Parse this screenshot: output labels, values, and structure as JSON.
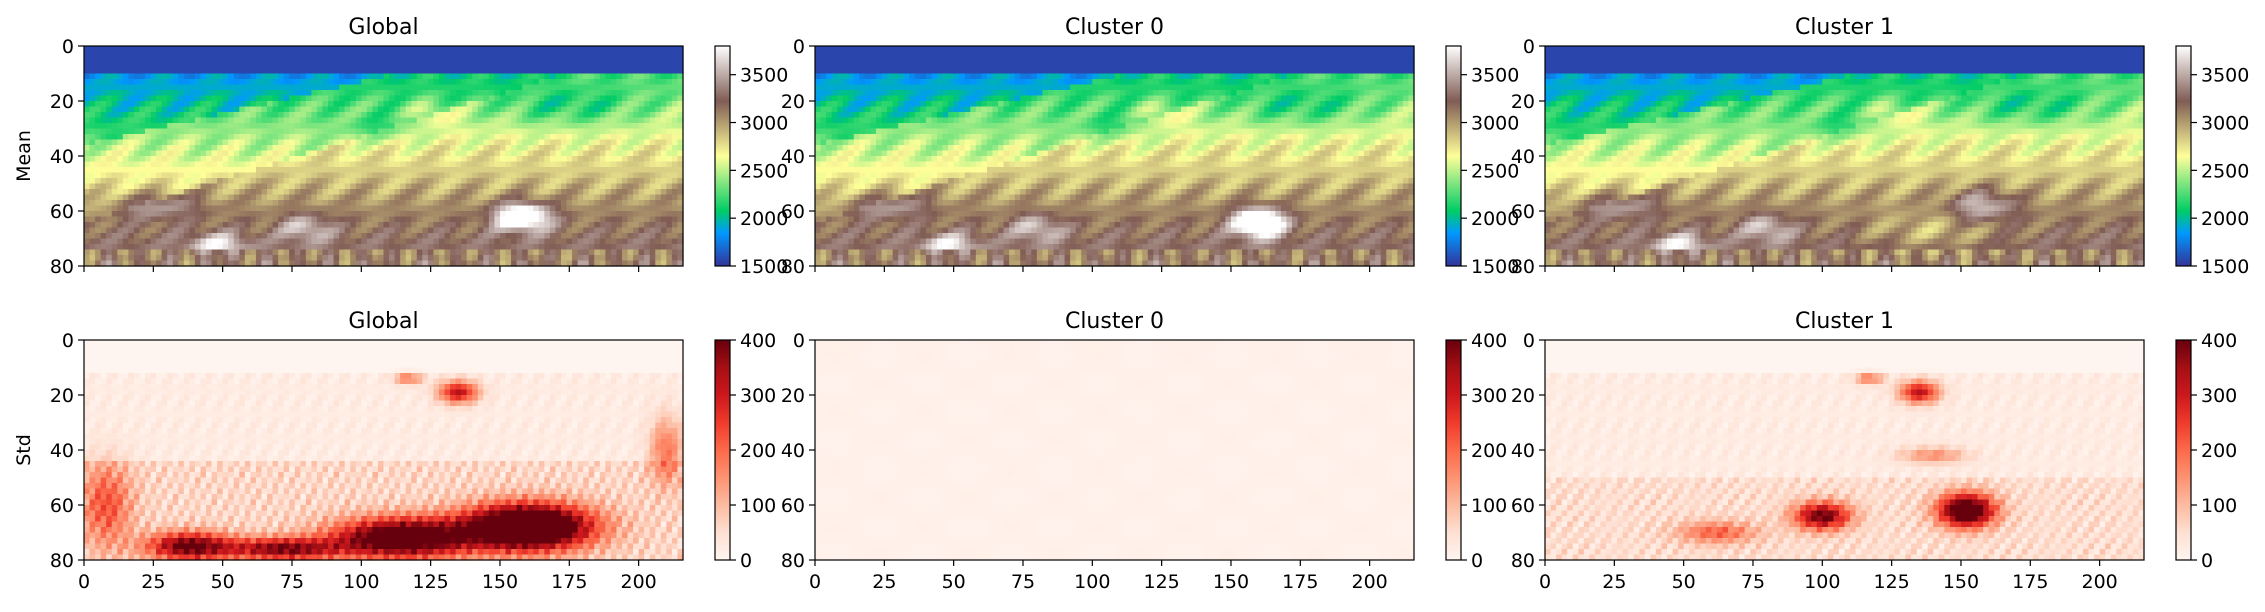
{
  "figure": {
    "row_labels": [
      "Mean",
      "Std"
    ],
    "panel_titles": [
      "Global",
      "Cluster 0",
      "Cluster 1"
    ]
  },
  "chart_data": [
    {
      "type": "heatmap",
      "title": "Global",
      "ylabel": "Mean",
      "row": 0,
      "col": 0,
      "stat": "mean",
      "field": "global",
      "colormap": "terrain",
      "vmin": 1500,
      "vmax": 3800,
      "xlim": [
        0,
        216
      ],
      "ylim": [
        80,
        0
      ],
      "xticks": [],
      "yticks": [
        0,
        20,
        40,
        60,
        80
      ],
      "cbar_ticks": [
        1500,
        2000,
        2500,
        3000,
        3500
      ]
    },
    {
      "type": "heatmap",
      "title": "Cluster 0",
      "ylabel": "",
      "row": 0,
      "col": 1,
      "stat": "mean",
      "field": "cluster0",
      "colormap": "terrain",
      "vmin": 1500,
      "vmax": 3800,
      "xlim": [
        0,
        216
      ],
      "ylim": [
        80,
        0
      ],
      "xticks": [],
      "yticks": [
        0,
        20,
        40,
        60,
        80
      ],
      "cbar_ticks": [
        1500,
        2000,
        2500,
        3000,
        3500
      ]
    },
    {
      "type": "heatmap",
      "title": "Cluster 1",
      "ylabel": "",
      "row": 0,
      "col": 2,
      "stat": "mean",
      "field": "cluster1",
      "colormap": "terrain",
      "vmin": 1500,
      "vmax": 3800,
      "xlim": [
        0,
        216
      ],
      "ylim": [
        80,
        0
      ],
      "xticks": [],
      "yticks": [
        0,
        20,
        40,
        60,
        80
      ],
      "cbar_ticks": [
        1500,
        2000,
        2500,
        3000,
        3500
      ]
    },
    {
      "type": "heatmap",
      "title": "Global",
      "ylabel": "Std",
      "row": 1,
      "col": 0,
      "stat": "std",
      "field": "global",
      "colormap": "Reds",
      "vmin": 0,
      "vmax": 400,
      "xlim": [
        0,
        216
      ],
      "ylim": [
        80,
        0
      ],
      "xticks": [
        0,
        25,
        50,
        75,
        100,
        125,
        150,
        175,
        200
      ],
      "yticks": [
        0,
        20,
        40,
        60,
        80
      ],
      "cbar_ticks": [
        0,
        100,
        200,
        300,
        400
      ]
    },
    {
      "type": "heatmap",
      "title": "Cluster 0",
      "ylabel": "",
      "row": 1,
      "col": 1,
      "stat": "std",
      "field": "cluster0",
      "colormap": "Reds",
      "vmin": 0,
      "vmax": 400,
      "xlim": [
        0,
        216
      ],
      "ylim": [
        80,
        0
      ],
      "xticks": [
        0,
        25,
        50,
        75,
        100,
        125,
        150,
        175,
        200
      ],
      "yticks": [
        0,
        20,
        40,
        60,
        80
      ],
      "cbar_ticks": [
        0,
        100,
        200,
        300,
        400
      ]
    },
    {
      "type": "heatmap",
      "title": "Cluster 1",
      "ylabel": "",
      "row": 1,
      "col": 2,
      "stat": "std",
      "field": "cluster1",
      "colormap": "Reds",
      "vmin": 0,
      "vmax": 400,
      "xlim": [
        0,
        216
      ],
      "ylim": [
        80,
        0
      ],
      "xticks": [
        0,
        25,
        50,
        75,
        100,
        125,
        150,
        175,
        200
      ],
      "yticks": [
        0,
        20,
        40,
        60,
        80
      ],
      "cbar_ticks": [
        0,
        100,
        200,
        300,
        400
      ]
    }
  ]
}
